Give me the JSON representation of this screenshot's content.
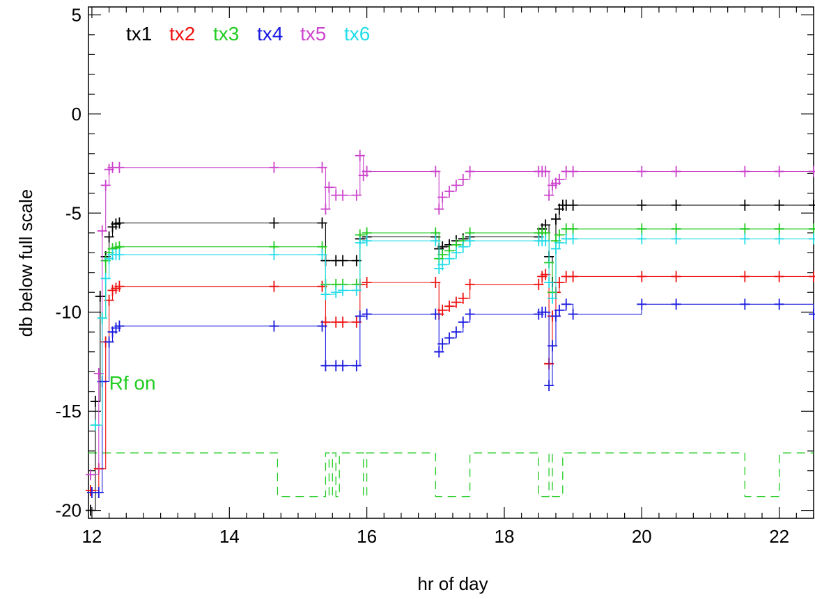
{
  "chart_data": {
    "type": "line",
    "xlabel": "hr of day",
    "ylabel": "db below full scale",
    "xlim": [
      11.95,
      22.5
    ],
    "ylim": [
      -20.4,
      5.4
    ],
    "xticks": [
      12,
      14,
      16,
      18,
      20,
      22
    ],
    "xtick_labels": [
      "12",
      "14",
      "16",
      "18",
      "20",
      "22"
    ],
    "yticks": [
      5,
      0,
      -5,
      -10,
      -15,
      -20
    ],
    "ytick_labels": [
      "5",
      "0",
      "-5",
      "-10",
      "-15",
      "-20"
    ],
    "grid": false,
    "legend_placement": "top-left",
    "annotation": {
      "text": "Rf on",
      "x": 12.25,
      "y": -13.9,
      "color": "#22cc22"
    },
    "series": [
      {
        "name": "tx1",
        "color": "#000000",
        "points": [
          [
            11.98,
            -20
          ],
          [
            12.05,
            -14.5
          ],
          [
            12.12,
            -9.2
          ],
          [
            12.2,
            -7.2
          ],
          [
            12.25,
            -6.2
          ],
          [
            12.3,
            -5.7
          ],
          [
            12.35,
            -5.55
          ],
          [
            12.4,
            -5.5
          ],
          [
            14.65,
            -5.5
          ],
          [
            15.35,
            -5.5
          ],
          [
            15.4,
            -7.4
          ],
          [
            15.55,
            -7.4
          ],
          [
            15.65,
            -7.4
          ],
          [
            15.85,
            -7.4
          ],
          [
            15.9,
            -6.3
          ],
          [
            16.0,
            -6.2
          ],
          [
            17.0,
            -6.2
          ],
          [
            17.05,
            -6.8
          ],
          [
            17.1,
            -6.7
          ],
          [
            17.2,
            -6.6
          ],
          [
            17.3,
            -6.4
          ],
          [
            17.4,
            -6.3
          ],
          [
            17.5,
            -6.2
          ],
          [
            18.5,
            -6.2
          ],
          [
            18.55,
            -5.8
          ],
          [
            18.6,
            -5.6
          ],
          [
            18.65,
            -7.2
          ],
          [
            18.7,
            -8.5
          ],
          [
            18.75,
            -5.3
          ],
          [
            18.8,
            -4.8
          ],
          [
            18.85,
            -4.6
          ],
          [
            18.9,
            -4.6
          ],
          [
            19.0,
            -4.6
          ],
          [
            20.0,
            -4.6
          ],
          [
            20.5,
            -4.6
          ],
          [
            21.5,
            -4.6
          ],
          [
            22.0,
            -4.6
          ],
          [
            22.5,
            -4.6
          ]
        ]
      },
      {
        "name": "tx2",
        "color": "#ee1111",
        "points": [
          [
            11.98,
            -19
          ],
          [
            12.1,
            -17.9
          ],
          [
            12.2,
            -11.5
          ],
          [
            12.25,
            -9.4
          ],
          [
            12.3,
            -8.9
          ],
          [
            12.35,
            -8.8
          ],
          [
            12.4,
            -8.7
          ],
          [
            14.65,
            -8.7
          ],
          [
            15.35,
            -8.7
          ],
          [
            15.4,
            -10.5
          ],
          [
            15.55,
            -10.5
          ],
          [
            15.65,
            -10.5
          ],
          [
            15.85,
            -10.5
          ],
          [
            15.9,
            -8.6
          ],
          [
            16.0,
            -8.5
          ],
          [
            17.0,
            -8.5
          ],
          [
            17.05,
            -10.1
          ],
          [
            17.1,
            -9.9
          ],
          [
            17.2,
            -9.7
          ],
          [
            17.3,
            -9.5
          ],
          [
            17.4,
            -9.3
          ],
          [
            17.5,
            -8.6
          ],
          [
            18.5,
            -8.6
          ],
          [
            18.55,
            -8.2
          ],
          [
            18.6,
            -8.1
          ],
          [
            18.65,
            -12.6
          ],
          [
            18.7,
            -10.2
          ],
          [
            18.75,
            -9.0
          ],
          [
            18.8,
            -8.5
          ],
          [
            18.9,
            -8.2
          ],
          [
            19.0,
            -8.2
          ],
          [
            20.0,
            -8.2
          ],
          [
            20.5,
            -8.2
          ],
          [
            21.5,
            -8.2
          ],
          [
            22.0,
            -8.2
          ],
          [
            22.5,
            -8.2
          ]
        ]
      },
      {
        "name": "tx3",
        "color": "#22cc22",
        "points": [
          [
            12.05,
            -15.7
          ],
          [
            12.15,
            -10.3
          ],
          [
            12.2,
            -7.4
          ],
          [
            12.25,
            -7.0
          ],
          [
            12.3,
            -6.8
          ],
          [
            12.35,
            -6.75
          ],
          [
            12.4,
            -6.7
          ],
          [
            14.65,
            -6.7
          ],
          [
            15.35,
            -6.7
          ],
          [
            15.4,
            -8.6
          ],
          [
            15.55,
            -8.6
          ],
          [
            15.65,
            -8.6
          ],
          [
            15.85,
            -8.6
          ],
          [
            15.9,
            -6.1
          ],
          [
            16.0,
            -6.0
          ],
          [
            17.0,
            -6.0
          ],
          [
            17.05,
            -7.3
          ],
          [
            17.1,
            -7.1
          ],
          [
            17.2,
            -6.9
          ],
          [
            17.3,
            -6.6
          ],
          [
            17.4,
            -6.4
          ],
          [
            17.5,
            -6.0
          ],
          [
            18.5,
            -6.0
          ],
          [
            18.55,
            -6.0
          ],
          [
            18.6,
            -6.0
          ],
          [
            18.65,
            -7.5
          ],
          [
            18.7,
            -9.0
          ],
          [
            18.75,
            -6.4
          ],
          [
            18.8,
            -6.1
          ],
          [
            18.9,
            -5.8
          ],
          [
            19.0,
            -5.8
          ],
          [
            20.0,
            -5.8
          ],
          [
            20.5,
            -5.8
          ],
          [
            21.5,
            -5.8
          ],
          [
            22.0,
            -5.8
          ],
          [
            22.5,
            -5.8
          ]
        ]
      },
      {
        "name": "tx4",
        "color": "#1a1ae0",
        "points": [
          [
            12.0,
            -19.1
          ],
          [
            12.1,
            -19.1
          ],
          [
            12.15,
            -13.5
          ],
          [
            12.25,
            -11.5
          ],
          [
            12.3,
            -11.0
          ],
          [
            12.35,
            -10.8
          ],
          [
            12.4,
            -10.7
          ],
          [
            14.65,
            -10.7
          ],
          [
            15.35,
            -10.7
          ],
          [
            15.4,
            -12.7
          ],
          [
            15.55,
            -12.7
          ],
          [
            15.65,
            -12.7
          ],
          [
            15.85,
            -12.7
          ],
          [
            15.9,
            -10.2
          ],
          [
            16.0,
            -10.1
          ],
          [
            17.0,
            -10.1
          ],
          [
            17.05,
            -12.0
          ],
          [
            17.1,
            -11.6
          ],
          [
            17.2,
            -11.3
          ],
          [
            17.3,
            -11.0
          ],
          [
            17.4,
            -10.5
          ],
          [
            17.5,
            -10.1
          ],
          [
            18.5,
            -10.1
          ],
          [
            18.55,
            -10.0
          ],
          [
            18.6,
            -10.0
          ],
          [
            18.65,
            -13.7
          ],
          [
            18.7,
            -11.7
          ],
          [
            18.75,
            -10.2
          ],
          [
            18.8,
            -9.9
          ],
          [
            18.9,
            -9.6
          ],
          [
            19.0,
            -10.1
          ],
          [
            20.0,
            -9.6
          ],
          [
            20.5,
            -9.6
          ],
          [
            21.5,
            -9.6
          ],
          [
            22.0,
            -9.6
          ],
          [
            22.5,
            -10.1
          ]
        ]
      },
      {
        "name": "tx5",
        "color": "#cc44cc",
        "points": [
          [
            11.98,
            -18.2
          ],
          [
            12.1,
            -13.1
          ],
          [
            12.15,
            -5.9
          ],
          [
            12.2,
            -3.6
          ],
          [
            12.25,
            -2.8
          ],
          [
            12.3,
            -2.7
          ],
          [
            12.4,
            -2.7
          ],
          [
            14.65,
            -2.7
          ],
          [
            15.35,
            -2.7
          ],
          [
            15.4,
            -4.8
          ],
          [
            15.45,
            -3.7
          ],
          [
            15.55,
            -4.1
          ],
          [
            15.65,
            -4.1
          ],
          [
            15.85,
            -4.1
          ],
          [
            15.9,
            -2.1
          ],
          [
            15.95,
            -3.1
          ],
          [
            16.0,
            -2.9
          ],
          [
            17.0,
            -2.9
          ],
          [
            17.05,
            -4.8
          ],
          [
            17.1,
            -4.2
          ],
          [
            17.2,
            -3.9
          ],
          [
            17.3,
            -3.6
          ],
          [
            17.4,
            -3.3
          ],
          [
            17.5,
            -2.9
          ],
          [
            18.5,
            -2.9
          ],
          [
            18.55,
            -2.9
          ],
          [
            18.6,
            -2.9
          ],
          [
            18.65,
            -4.1
          ],
          [
            18.7,
            -3.6
          ],
          [
            18.75,
            -3.5
          ],
          [
            18.8,
            -3.3
          ],
          [
            18.9,
            -2.9
          ],
          [
            19.0,
            -2.9
          ],
          [
            20.0,
            -2.9
          ],
          [
            20.5,
            -2.9
          ],
          [
            21.5,
            -2.9
          ],
          [
            22.0,
            -2.9
          ],
          [
            22.5,
            -2.9
          ]
        ]
      },
      {
        "name": "tx6",
        "color": "#22dde8",
        "points": [
          [
            12.05,
            -15.7
          ],
          [
            12.15,
            -10.3
          ],
          [
            12.2,
            -8.3
          ],
          [
            12.25,
            -7.3
          ],
          [
            12.3,
            -7.1
          ],
          [
            12.35,
            -7.1
          ],
          [
            12.4,
            -7.1
          ],
          [
            14.65,
            -7.1
          ],
          [
            15.35,
            -7.1
          ],
          [
            15.4,
            -9.1
          ],
          [
            15.55,
            -9.0
          ],
          [
            15.65,
            -8.9
          ],
          [
            15.85,
            -8.9
          ],
          [
            15.9,
            -6.5
          ],
          [
            16.0,
            -6.4
          ],
          [
            17.0,
            -6.4
          ],
          [
            17.05,
            -7.8
          ],
          [
            17.1,
            -7.6
          ],
          [
            17.2,
            -7.3
          ],
          [
            17.3,
            -7.0
          ],
          [
            17.4,
            -6.7
          ],
          [
            17.5,
            -6.4
          ],
          [
            18.5,
            -6.4
          ],
          [
            18.55,
            -6.4
          ],
          [
            18.6,
            -6.4
          ],
          [
            18.65,
            -8.5
          ],
          [
            18.7,
            -9.3
          ],
          [
            18.75,
            -6.8
          ],
          [
            18.8,
            -6.5
          ],
          [
            18.9,
            -6.3
          ],
          [
            19.0,
            -6.3
          ],
          [
            20.0,
            -6.3
          ],
          [
            20.5,
            -6.3
          ],
          [
            21.5,
            -6.3
          ],
          [
            22.0,
            -6.3
          ],
          [
            22.5,
            -6.3
          ]
        ]
      }
    ],
    "rf_on": {
      "name": "Rf on",
      "color": "#22cc22",
      "points": [
        [
          11.95,
          -17.1
        ],
        [
          14.65,
          -17.1
        ],
        [
          14.7,
          -19.3
        ],
        [
          15.35,
          -19.3
        ],
        [
          15.4,
          -17.1
        ],
        [
          15.45,
          -19.3
        ],
        [
          15.5,
          -17.1
        ],
        [
          15.55,
          -19.3
        ],
        [
          15.6,
          -17.1
        ],
        [
          15.9,
          -17.1
        ],
        [
          15.95,
          -19.3
        ],
        [
          16.0,
          -17.1
        ],
        [
          17.0,
          -17.1
        ],
        [
          17.0,
          -19.3
        ],
        [
          17.5,
          -19.3
        ],
        [
          17.5,
          -17.1
        ],
        [
          18.5,
          -17.1
        ],
        [
          18.5,
          -19.3
        ],
        [
          18.65,
          -19.3
        ],
        [
          18.65,
          -17.1
        ],
        [
          18.7,
          -19.3
        ],
        [
          18.85,
          -19.3
        ],
        [
          18.85,
          -17.1
        ],
        [
          21.5,
          -17.1
        ],
        [
          21.5,
          -19.3
        ],
        [
          22.0,
          -19.3
        ],
        [
          22.0,
          -17.1
        ],
        [
          22.5,
          -17.1
        ]
      ]
    }
  }
}
